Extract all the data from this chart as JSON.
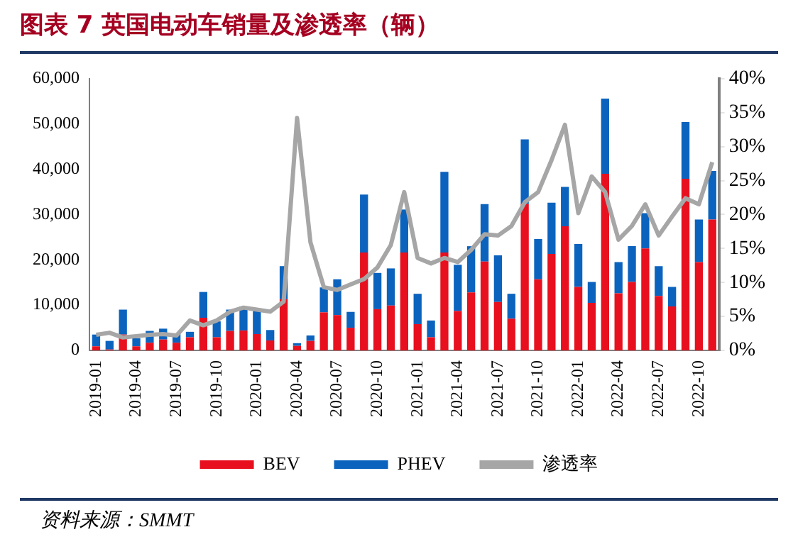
{
  "chart_data": {
    "type": "bar",
    "title": "图表 7   英国电动车销量及渗透率（辆）",
    "categories": [
      "2019-01",
      null,
      null,
      "2019-04",
      null,
      null,
      "2019-07",
      null,
      null,
      "2019-10",
      null,
      null,
      "2020-01",
      null,
      null,
      "2020-04",
      null,
      null,
      "2020-07",
      null,
      null,
      "2020-10",
      null,
      null,
      "2021-01",
      null,
      null,
      "2021-04",
      null,
      null,
      "2021-07",
      null,
      null,
      "2021-10",
      null,
      null,
      "2022-01",
      null,
      null,
      "2022-04",
      null,
      null,
      "2022-07",
      null,
      null,
      "2022-10",
      null
    ],
    "stacked": true,
    "series": [
      {
        "name": "BEV",
        "color": "#e8101e",
        "values": [
          900,
          200,
          3500,
          900,
          1700,
          2400,
          1700,
          2900,
          7200,
          2900,
          4300,
          4400,
          3600,
          2200,
          11300,
          1000,
          2100,
          8400,
          7800,
          5000,
          21600,
          9100,
          9900,
          21600,
          5800,
          2900,
          21600,
          8700,
          12800,
          19600,
          10700,
          7000,
          32300,
          15700,
          21300,
          27400,
          14000,
          10500,
          39000,
          12600,
          15100,
          22500,
          12000,
          9700,
          37900,
          19500,
          28900
        ]
      },
      {
        "name": "PHEV",
        "color": "#0b63be",
        "values": [
          2600,
          1900,
          5500,
          1800,
          2600,
          2400,
          1900,
          1200,
          5700,
          3500,
          4700,
          5300,
          5100,
          2300,
          7300,
          600,
          1200,
          5500,
          7900,
          3500,
          12800,
          8000,
          8200,
          9500,
          6700,
          3700,
          17800,
          10200,
          10200,
          12700,
          10300,
          5500,
          14300,
          8900,
          11300,
          8700,
          9500,
          4600,
          16600,
          6900,
          7900,
          7800,
          6600,
          4300,
          12500,
          9400,
          10700
        ]
      },
      {
        "name": "渗透率",
        "type": "line",
        "axis": "y2",
        "color": "#a6a6a6",
        "values": [
          2.3,
          2.6,
          1.9,
          2.1,
          2.3,
          2.4,
          2.2,
          4.4,
          3.7,
          4.4,
          5.7,
          6.3,
          6.0,
          5.7,
          7.2,
          34.2,
          15.9,
          9.3,
          8.9,
          9.7,
          10.5,
          12.2,
          15.5,
          23.3,
          13.6,
          12.8,
          13.6,
          13.0,
          14.8,
          17.1,
          16.9,
          18.3,
          21.8,
          23.3,
          28.0,
          33.2,
          20.2,
          25.6,
          23.3,
          16.3,
          18.3,
          21.5,
          16.9,
          19.7,
          22.4,
          21.5,
          27.7
        ]
      }
    ],
    "ylim": [
      0,
      60000
    ],
    "yticks": [
      0,
      {
        "value": 10000,
        "label": "10,000"
      },
      {
        "value": 20000,
        "label": "20,000"
      },
      {
        "value": 30000,
        "label": "30,000"
      },
      {
        "value": 40000,
        "label": "40,000"
      },
      {
        "value": 50000,
        "label": "50,000"
      },
      {
        "value": 60000,
        "label": "60,000"
      }
    ],
    "y2lim": [
      0,
      40
    ],
    "y2ticks": [
      {
        "value": 0,
        "label": "0%"
      },
      {
        "value": 5,
        "label": "5%"
      },
      {
        "value": 10,
        "label": "10%"
      },
      {
        "value": 15,
        "label": "15%"
      },
      {
        "value": 20,
        "label": "20%"
      },
      {
        "value": 25,
        "label": "25%"
      },
      {
        "value": 30,
        "label": "30%"
      },
      {
        "value": 35,
        "label": "35%"
      },
      {
        "value": 40,
        "label": "40%"
      }
    ],
    "grid": false,
    "legend": "bottom",
    "marker": "none",
    "line_style": "solid",
    "annotations": [
      "资料来源：SMMT"
    ]
  }
}
